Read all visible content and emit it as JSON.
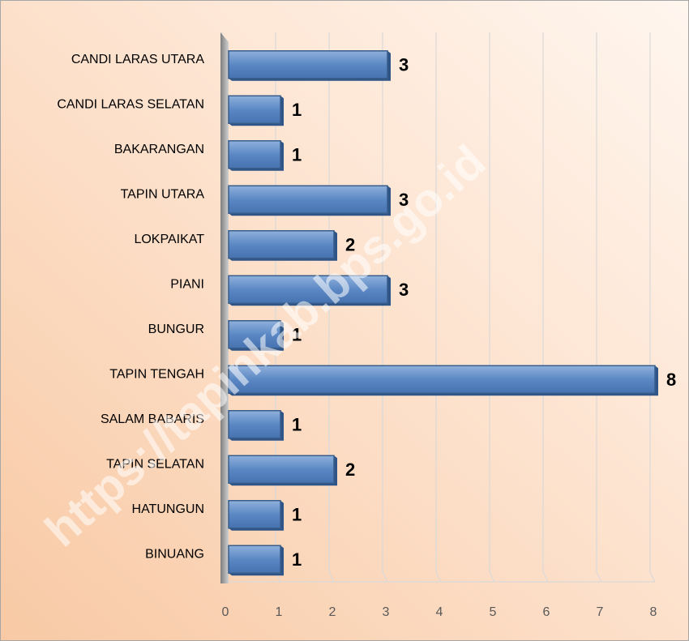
{
  "chart_data": {
    "type": "bar",
    "orientation": "horizontal",
    "categories": [
      "CANDI LARAS UTARA",
      "CANDI LARAS SELATAN",
      "BAKARANGAN",
      "TAPIN UTARA",
      "LOKPAIKAT",
      "PIANI",
      "BUNGUR",
      "TAPIN TENGAH",
      "SALAM BABARIS",
      "TAPIN SELATAN",
      "HATUNGUN",
      "BINUANG"
    ],
    "values": [
      3,
      1,
      1,
      3,
      2,
      3,
      1,
      8,
      1,
      2,
      1,
      1
    ],
    "color": "#4f81bd",
    "xlim": [
      0,
      8
    ],
    "xticks": [
      0,
      1,
      2,
      3,
      4,
      5,
      6,
      7,
      8
    ],
    "grid": true,
    "watermark": "https://tapinkab.bps.go.id"
  }
}
